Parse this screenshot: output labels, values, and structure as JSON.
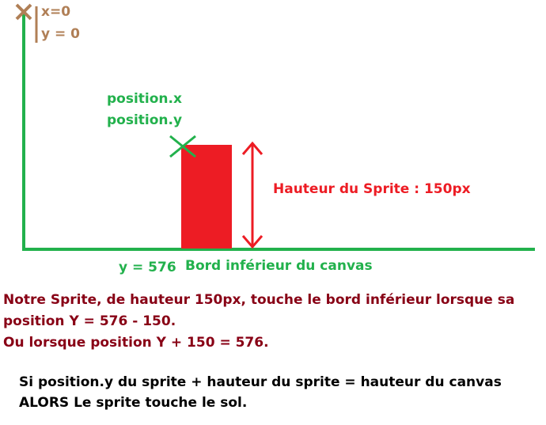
{
  "origin": {
    "x_label": "x=0",
    "y_label": "y = 0"
  },
  "sprite": {
    "pos_x_label": "position.x",
    "pos_y_label": "position.y",
    "height_label": "Hauteur du Sprite : 150px"
  },
  "ground": {
    "y_label": "y = 576",
    "edge_label": "Bord inférieur du canvas"
  },
  "explanation": {
    "line1": "Notre Sprite, de hauteur 150px, touche le bord inférieur lorsque sa",
    "line2": "position Y = 576 - 150.",
    "line3": "Ou lorsque position Y + 150 = 576."
  },
  "rule": {
    "line1": "Si position.y du sprite + hauteur du sprite = hauteur du canvas",
    "line2": "ALORS Le sprite touche le sol."
  },
  "colors": {
    "axis": "#22b14c",
    "sprite": "#ed1c24",
    "origin": "#b07f56",
    "explanation": "#880015",
    "rule": "#000000"
  }
}
